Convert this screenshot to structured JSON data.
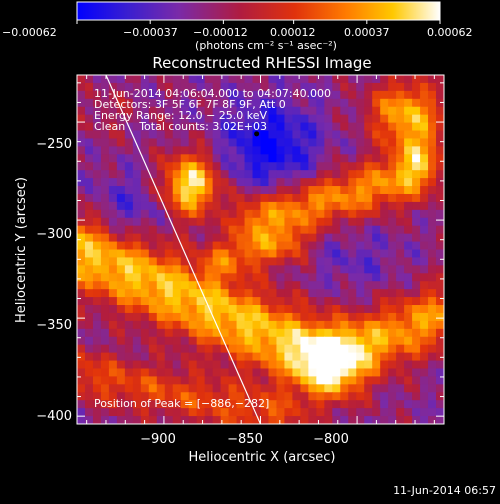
{
  "chart_data": {
    "type": "heatmap",
    "title": "Reconstructed RHESSI Image",
    "xlabel": "Heliocentric X (arcsec)",
    "ylabel": "Heliocentric Y (arcsec)",
    "x_ticks": [
      -900,
      -850,
      -800
    ],
    "x_tick_labels": [
      "−900",
      "−850",
      "−800"
    ],
    "y_ticks": [
      -250,
      -300,
      -350,
      -400
    ],
    "y_tick_labels": [
      "−250",
      "−300",
      "−350",
      "−400"
    ],
    "xlim": [
      -945,
      -755
    ],
    "ylim": [
      -404,
      -226
    ],
    "colorbar": {
      "min": -0.00062,
      "max": 0.00062,
      "tick_values": [
        -0.00062,
        -0.00037,
        -0.00012,
        0.00012,
        0.00037,
        0.00062
      ],
      "tick_labels": [
        "−0.00062",
        "−0.00037",
        "−0.00012",
        "0.00012",
        "0.00037",
        "0.00062"
      ],
      "unit_label": "(photons cm⁻² s⁻¹ asec⁻²)",
      "colormap": [
        "#0000ff",
        "#3a1fd0",
        "#7a2aa8",
        "#b01c40",
        "#e0320c",
        "#ff7a00",
        "#ffc800",
        "#ffffff"
      ]
    },
    "peak": {
      "x": -886,
      "y": -282
    },
    "annotations": [
      "11-Jun-2014 04:06:04.000 to 04:07:40.000",
      "Detectors: 3F 5F 6F 7F 8F 9F, Att 0",
      "Energy Range: 12.0 − 25.0 keV",
      "Clean    Total counts: 3.02E+03"
    ],
    "peak_label": "Position of Peak = [−886,−282]",
    "limb_line": [
      [
        -930,
        -226
      ],
      [
        -850,
        -404
      ]
    ]
  },
  "footer": {
    "timestamp": "11-Jun-2014 06:57"
  }
}
